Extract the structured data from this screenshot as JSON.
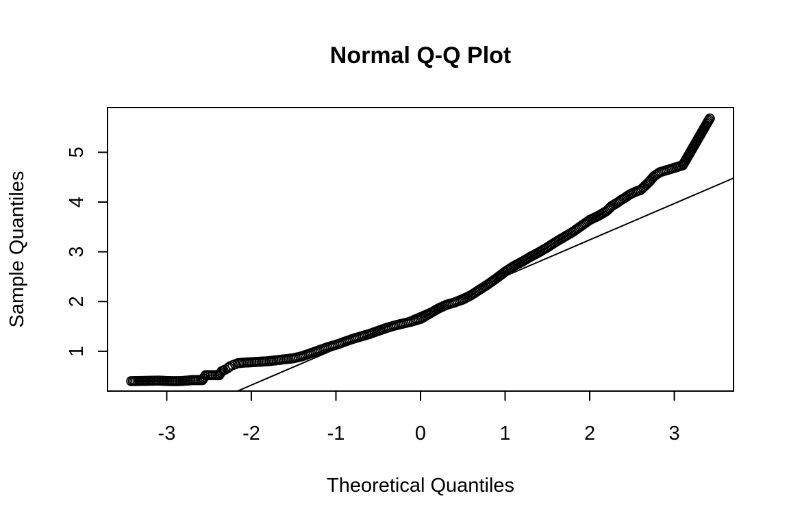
{
  "chart_data": {
    "type": "scatter",
    "title": "Normal Q-Q Plot",
    "xlabel": "Theoretical Quantiles",
    "ylabel": "Sample Quantiles",
    "xlim": [
      -3.7,
      3.7
    ],
    "ylim": [
      0.2,
      5.9
    ],
    "x_ticks": [
      -3,
      -2,
      -1,
      0,
      1,
      2,
      3
    ],
    "x_tick_labels": [
      "-3",
      "-2",
      "-1",
      "0",
      "1",
      "2",
      "3"
    ],
    "y_ticks": [
      1,
      2,
      3,
      4,
      5
    ],
    "y_tick_labels": [
      "1",
      "2",
      "3",
      "4",
      "5"
    ],
    "grid": false,
    "marker": "open-circle",
    "reference_line": {
      "intercept": 1.78,
      "slope": 0.73
    },
    "points": [
      [
        -3.42,
        0.4
      ],
      [
        -3.1,
        0.41
      ],
      [
        -2.95,
        0.4
      ],
      [
        -2.85,
        0.4
      ],
      [
        -2.76,
        0.41
      ],
      [
        -2.7,
        0.42
      ],
      [
        -2.64,
        0.42
      ],
      [
        -2.58,
        0.42
      ],
      [
        -2.54,
        0.52
      ],
      [
        -2.5,
        0.52
      ],
      [
        -2.46,
        0.52
      ],
      [
        -2.42,
        0.52
      ],
      [
        -2.38,
        0.52
      ],
      [
        -2.35,
        0.6
      ],
      [
        -2.31,
        0.63
      ],
      [
        -2.28,
        0.66
      ],
      [
        -2.25,
        0.7
      ],
      [
        -2.22,
        0.72
      ],
      [
        -2.19,
        0.74
      ],
      [
        -2.16,
        0.76
      ],
      [
        -2.1,
        0.77
      ],
      [
        -2.0,
        0.78
      ],
      [
        -1.9,
        0.79
      ],
      [
        -1.8,
        0.8
      ],
      [
        -1.7,
        0.82
      ],
      [
        -1.6,
        0.84
      ],
      [
        -1.5,
        0.86
      ],
      [
        -1.4,
        0.9
      ],
      [
        -1.3,
        0.96
      ],
      [
        -1.2,
        1.02
      ],
      [
        -1.1,
        1.08
      ],
      [
        -1.0,
        1.13
      ],
      [
        -0.9,
        1.19
      ],
      [
        -0.8,
        1.25
      ],
      [
        -0.7,
        1.3
      ],
      [
        -0.6,
        1.35
      ],
      [
        -0.5,
        1.41
      ],
      [
        -0.4,
        1.47
      ],
      [
        -0.3,
        1.52
      ],
      [
        -0.2,
        1.56
      ],
      [
        -0.1,
        1.6
      ],
      [
        0.0,
        1.65
      ],
      [
        0.1,
        1.75
      ],
      [
        0.2,
        1.85
      ],
      [
        0.3,
        1.93
      ],
      [
        0.4,
        1.98
      ],
      [
        0.5,
        2.04
      ],
      [
        0.6,
        2.13
      ],
      [
        0.7,
        2.24
      ],
      [
        0.8,
        2.35
      ],
      [
        0.9,
        2.47
      ],
      [
        1.0,
        2.6
      ],
      [
        1.1,
        2.71
      ],
      [
        1.2,
        2.8
      ],
      [
        1.3,
        2.9
      ],
      [
        1.4,
        2.99
      ],
      [
        1.5,
        3.09
      ],
      [
        1.6,
        3.2
      ],
      [
        1.7,
        3.3
      ],
      [
        1.8,
        3.4
      ],
      [
        1.9,
        3.52
      ],
      [
        2.0,
        3.64
      ],
      [
        2.1,
        3.72
      ],
      [
        2.2,
        3.82
      ],
      [
        2.26,
        3.92
      ],
      [
        2.32,
        3.98
      ],
      [
        2.37,
        4.04
      ],
      [
        2.42,
        4.09
      ],
      [
        2.47,
        4.15
      ],
      [
        2.52,
        4.19
      ],
      [
        2.56,
        4.22
      ],
      [
        2.6,
        4.24
      ],
      [
        2.65,
        4.32
      ],
      [
        2.7,
        4.4
      ],
      [
        2.76,
        4.52
      ],
      [
        2.83,
        4.6
      ],
      [
        2.93,
        4.65
      ],
      [
        3.1,
        4.74
      ],
      [
        3.42,
        5.68
      ]
    ]
  }
}
